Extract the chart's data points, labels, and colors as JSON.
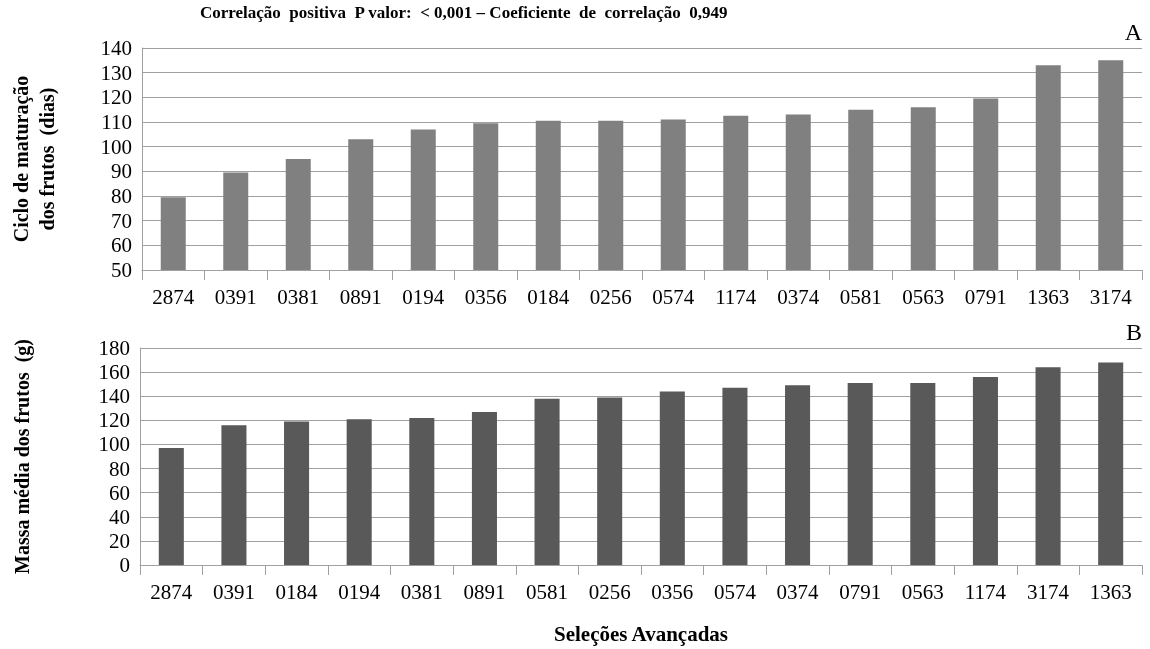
{
  "chart_data": [
    {
      "type": "bar",
      "title": "Correlação  positiva  P valor:  < 0,001 – Coeficiente  de  correlação  0,949",
      "ylabel": "Ciclo de maturação\ndos frutos  (dias)",
      "annotations": [
        "A"
      ],
      "categories": [
        "2874",
        "0391",
        "0381",
        "0891",
        "0194",
        "0356",
        "0184",
        "0256",
        "0574",
        "1174",
        "0374",
        "0581",
        "0563",
        "0791",
        "1363",
        "3174"
      ],
      "values": [
        79.5,
        89.5,
        95,
        103,
        107,
        109.5,
        110.5,
        110.5,
        111,
        112.5,
        113,
        115,
        116,
        119.5,
        133,
        135
      ],
      "color": "#808080",
      "ylim": [
        50,
        140
      ],
      "yticks": [
        50,
        60,
        70,
        80,
        90,
        100,
        110,
        120,
        130,
        140
      ],
      "grid": "y"
    },
    {
      "type": "bar",
      "xlabel": "Seleções Avançadas",
      "ylabel": "Massa média dos frutos  (g)",
      "annotations": [
        "B"
      ],
      "categories": [
        "2874",
        "0391",
        "0184",
        "0194",
        "0381",
        "0891",
        "0581",
        "0256",
        "0356",
        "0574",
        "0374",
        "0791",
        "0563",
        "1174",
        "3174",
        "1363"
      ],
      "values": [
        97,
        116,
        119,
        121,
        122,
        127,
        138,
        139,
        144,
        147,
        149,
        151,
        151,
        156,
        164,
        168
      ],
      "color": "#595959",
      "ylim": [
        0,
        180
      ],
      "yticks": [
        0,
        20,
        40,
        60,
        80,
        100,
        120,
        140,
        160,
        180
      ],
      "grid": "y"
    }
  ]
}
